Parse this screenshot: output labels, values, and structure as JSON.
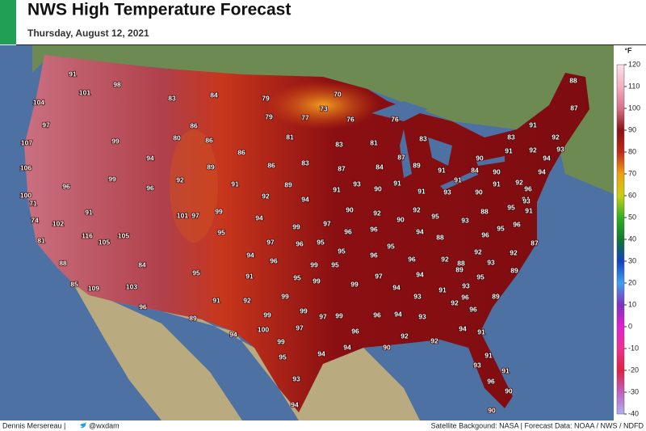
{
  "header": {
    "title": "NWS High Temperature Forecast",
    "subtitle": "Thursday, August 12, 2021"
  },
  "legend": {
    "unit": "°F",
    "ticks": [
      120,
      110,
      100,
      90,
      80,
      70,
      60,
      50,
      40,
      30,
      20,
      10,
      0,
      -10,
      -20,
      -30,
      -40
    ],
    "colors": [
      "#fbe0ea",
      "#f2b0c0",
      "#d97088",
      "#8a0f14",
      "#c0281a",
      "#f0a010",
      "#c8d010",
      "#30b020",
      "#107830",
      "#1040c0",
      "#40a0f0",
      "#8030c0",
      "#e020d0",
      "#f03090",
      "#e02040",
      "#c060c0",
      "#b0b0f0"
    ]
  },
  "temps": [
    91,
    98,
    101,
    104,
    97,
    83,
    84,
    79,
    70,
    79,
    77,
    73,
    76,
    76,
    88,
    87,
    107,
    99,
    86,
    80,
    86,
    81,
    83,
    81,
    83,
    91,
    83,
    91,
    92,
    92,
    93,
    106,
    94,
    86,
    83,
    86,
    87,
    84,
    87,
    89,
    90,
    84,
    90,
    94,
    94,
    99,
    92,
    89,
    91,
    91,
    96,
    96,
    89,
    93,
    90,
    91,
    91,
    91,
    92,
    96,
    100,
    92,
    94,
    91,
    91,
    93,
    90,
    94,
    71,
    91,
    101,
    97,
    99,
    90,
    92,
    92,
    95,
    88,
    95,
    93,
    91,
    74,
    102,
    94,
    99,
    97,
    96,
    96,
    90,
    93,
    95,
    96,
    116,
    105,
    105,
    95,
    94,
    88,
    96,
    81,
    97,
    96,
    95,
    95,
    96,
    92,
    88,
    92,
    93,
    87,
    95,
    94,
    96,
    99,
    95,
    96,
    92,
    89,
    88,
    84,
    91,
    95,
    99,
    99,
    97,
    94,
    93,
    95,
    89,
    95,
    85,
    109,
    103,
    91,
    92,
    99,
    94,
    91,
    96,
    89,
    93,
    92,
    96,
    99,
    97,
    99,
    99,
    96,
    94,
    93,
    96,
    89,
    100,
    97,
    96,
    94,
    91,
    94,
    99,
    90,
    92,
    92,
    95,
    94,
    94,
    91,
    93,
    91,
    93,
    96,
    90,
    94,
    90
  ],
  "footer": {
    "left": "Dennis Mersereau |",
    "handle": "@wxdam",
    "right": "Satellite Backgound: NASA | Forecast Data: NOAA / NWS / NDFD"
  }
}
